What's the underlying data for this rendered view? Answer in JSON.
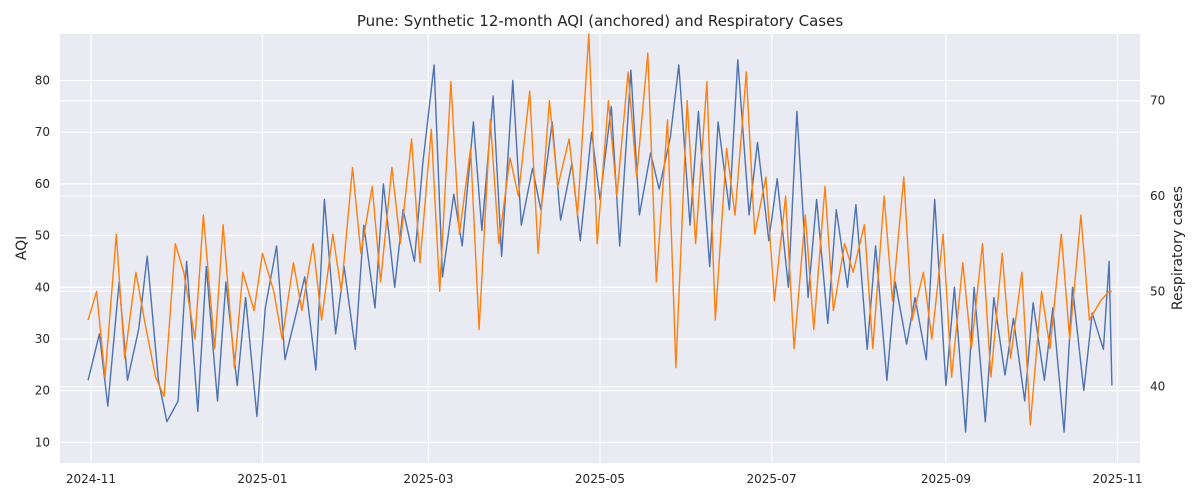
{
  "chart_data": {
    "type": "line",
    "title": "Pune: Synthetic 12-month AQI (anchored) and Respiratory Cases",
    "xlabel": "",
    "ylabel": "AQI",
    "y2label": "Respiratory cases",
    "xlim": [
      "2024-10-21",
      "2025-11-09"
    ],
    "ylim": [
      6,
      89
    ],
    "y2lim": [
      32,
      77
    ],
    "x_ticks": [
      "2024-11",
      "2025-01",
      "2025-03",
      "2025-05",
      "2025-07",
      "2025-09",
      "2025-11"
    ],
    "y_ticks": [
      10,
      20,
      30,
      40,
      50,
      60,
      70,
      80
    ],
    "y2_ticks": [
      40,
      50,
      60,
      70
    ],
    "grid": true,
    "colors": {
      "aqi": "#4c72b0",
      "cases": "#ff7f0e",
      "background": "#eaeaf2",
      "grid": "#ffffff"
    },
    "series": [
      {
        "axis": "left",
        "color": "#4c72b0",
        "values": [
          [
            "2024-10-31",
            22
          ],
          [
            "2024-11-04",
            31
          ],
          [
            "2024-11-07",
            17
          ],
          [
            "2024-11-11",
            41
          ],
          [
            "2024-11-14",
            22
          ],
          [
            "2024-11-18",
            32
          ],
          [
            "2024-11-21",
            46
          ],
          [
            "2024-11-25",
            22
          ],
          [
            "2024-11-28",
            14
          ],
          [
            "2024-12-02",
            18
          ],
          [
            "2024-12-05",
            45
          ],
          [
            "2024-12-09",
            16
          ],
          [
            "2024-12-12",
            44
          ],
          [
            "2024-12-16",
            18
          ],
          [
            "2024-12-19",
            41
          ],
          [
            "2024-12-23",
            21
          ],
          [
            "2024-12-26",
            38
          ],
          [
            "2024-12-30",
            15
          ],
          [
            "2025-01-02",
            36
          ],
          [
            "2025-01-06",
            48
          ],
          [
            "2025-01-09",
            26
          ],
          [
            "2025-01-13",
            35
          ],
          [
            "2025-01-16",
            42
          ],
          [
            "2025-01-20",
            24
          ],
          [
            "2025-01-23",
            57
          ],
          [
            "2025-01-27",
            31
          ],
          [
            "2025-01-30",
            44
          ],
          [
            "2025-02-03",
            28
          ],
          [
            "2025-02-06",
            52
          ],
          [
            "2025-02-10",
            36
          ],
          [
            "2025-02-13",
            60
          ],
          [
            "2025-02-17",
            40
          ],
          [
            "2025-02-20",
            55
          ],
          [
            "2025-02-24",
            45
          ],
          [
            "2025-02-27",
            64
          ],
          [
            "2025-03-03",
            83
          ],
          [
            "2025-03-06",
            42
          ],
          [
            "2025-03-10",
            58
          ],
          [
            "2025-03-13",
            48
          ],
          [
            "2025-03-17",
            72
          ],
          [
            "2025-03-20",
            51
          ],
          [
            "2025-03-24",
            77
          ],
          [
            "2025-03-27",
            46
          ],
          [
            "2025-03-31",
            80
          ],
          [
            "2025-04-03",
            52
          ],
          [
            "2025-04-07",
            63
          ],
          [
            "2025-04-10",
            55
          ],
          [
            "2025-04-14",
            72
          ],
          [
            "2025-04-17",
            53
          ],
          [
            "2025-04-21",
            64
          ],
          [
            "2025-04-24",
            49
          ],
          [
            "2025-04-28",
            70
          ],
          [
            "2025-05-01",
            57
          ],
          [
            "2025-05-05",
            75
          ],
          [
            "2025-05-08",
            48
          ],
          [
            "2025-05-12",
            82
          ],
          [
            "2025-05-15",
            54
          ],
          [
            "2025-05-19",
            66
          ],
          [
            "2025-05-22",
            59
          ],
          [
            "2025-05-26",
            69
          ],
          [
            "2025-05-29",
            83
          ],
          [
            "2025-06-02",
            52
          ],
          [
            "2025-06-05",
            74
          ],
          [
            "2025-06-09",
            44
          ],
          [
            "2025-06-12",
            72
          ],
          [
            "2025-06-16",
            55
          ],
          [
            "2025-06-19",
            84
          ],
          [
            "2025-06-23",
            54
          ],
          [
            "2025-06-26",
            68
          ],
          [
            "2025-06-30",
            49
          ],
          [
            "2025-07-03",
            61
          ],
          [
            "2025-07-07",
            40
          ],
          [
            "2025-07-10",
            74
          ],
          [
            "2025-07-14",
            38
          ],
          [
            "2025-07-17",
            57
          ],
          [
            "2025-07-21",
            33
          ],
          [
            "2025-07-24",
            55
          ],
          [
            "2025-07-28",
            40
          ],
          [
            "2025-07-31",
            56
          ],
          [
            "2025-08-04",
            28
          ],
          [
            "2025-08-07",
            48
          ],
          [
            "2025-08-11",
            22
          ],
          [
            "2025-08-14",
            41
          ],
          [
            "2025-08-18",
            29
          ],
          [
            "2025-08-21",
            38
          ],
          [
            "2025-08-25",
            26
          ],
          [
            "2025-08-28",
            57
          ],
          [
            "2025-09-01",
            21
          ],
          [
            "2025-09-04",
            40
          ],
          [
            "2025-09-08",
            12
          ],
          [
            "2025-09-11",
            40
          ],
          [
            "2025-09-15",
            14
          ],
          [
            "2025-09-18",
            38
          ],
          [
            "2025-09-22",
            23
          ],
          [
            "2025-09-25",
            34
          ],
          [
            "2025-09-29",
            18
          ],
          [
            "2025-10-02",
            37
          ],
          [
            "2025-10-06",
            22
          ],
          [
            "2025-10-09",
            36
          ],
          [
            "2025-10-13",
            12
          ],
          [
            "2025-10-16",
            40
          ],
          [
            "2025-10-20",
            20
          ],
          [
            "2025-10-23",
            35
          ],
          [
            "2025-10-27",
            28
          ],
          [
            "2025-10-29",
            45
          ],
          [
            "2025-10-30",
            21
          ]
        ]
      },
      {
        "axis": "right",
        "color": "#ff7f0e",
        "values": [
          [
            "2024-10-31",
            47
          ],
          [
            "2024-11-03",
            50
          ],
          [
            "2024-11-06",
            41
          ],
          [
            "2024-11-10",
            56
          ],
          [
            "2024-11-13",
            43
          ],
          [
            "2024-11-17",
            52
          ],
          [
            "2024-11-20",
            47
          ],
          [
            "2024-11-24",
            41
          ],
          [
            "2024-11-27",
            39
          ],
          [
            "2024-12-01",
            55
          ],
          [
            "2024-12-04",
            52
          ],
          [
            "2024-12-08",
            45
          ],
          [
            "2024-12-11",
            58
          ],
          [
            "2024-12-15",
            44
          ],
          [
            "2024-12-18",
            57
          ],
          [
            "2024-12-22",
            42
          ],
          [
            "2024-12-25",
            52
          ],
          [
            "2024-12-29",
            48
          ],
          [
            "2025-01-01",
            54
          ],
          [
            "2025-01-05",
            50
          ],
          [
            "2025-01-08",
            45
          ],
          [
            "2025-01-12",
            53
          ],
          [
            "2025-01-15",
            48
          ],
          [
            "2025-01-19",
            55
          ],
          [
            "2025-01-22",
            47
          ],
          [
            "2025-01-26",
            56
          ],
          [
            "2025-01-29",
            50
          ],
          [
            "2025-02-02",
            63
          ],
          [
            "2025-02-05",
            54
          ],
          [
            "2025-02-09",
            61
          ],
          [
            "2025-02-12",
            51
          ],
          [
            "2025-02-16",
            63
          ],
          [
            "2025-02-19",
            55
          ],
          [
            "2025-02-23",
            66
          ],
          [
            "2025-02-26",
            53
          ],
          [
            "2025-03-02",
            67
          ],
          [
            "2025-03-05",
            50
          ],
          [
            "2025-03-09",
            72
          ],
          [
            "2025-03-12",
            56
          ],
          [
            "2025-03-16",
            65
          ],
          [
            "2025-03-19",
            46
          ],
          [
            "2025-03-23",
            68
          ],
          [
            "2025-03-26",
            55
          ],
          [
            "2025-03-30",
            64
          ],
          [
            "2025-04-02",
            60
          ],
          [
            "2025-04-06",
            71
          ],
          [
            "2025-04-09",
            54
          ],
          [
            "2025-04-13",
            70
          ],
          [
            "2025-04-16",
            61
          ],
          [
            "2025-04-20",
            66
          ],
          [
            "2025-04-23",
            58
          ],
          [
            "2025-04-27",
            77
          ],
          [
            "2025-04-30",
            55
          ],
          [
            "2025-05-04",
            70
          ],
          [
            "2025-05-07",
            60
          ],
          [
            "2025-05-11",
            73
          ],
          [
            "2025-05-14",
            62
          ],
          [
            "2025-05-18",
            75
          ],
          [
            "2025-05-21",
            51
          ],
          [
            "2025-05-25",
            68
          ],
          [
            "2025-05-28",
            42
          ],
          [
            "2025-06-01",
            70
          ],
          [
            "2025-06-04",
            55
          ],
          [
            "2025-06-08",
            72
          ],
          [
            "2025-06-11",
            47
          ],
          [
            "2025-06-15",
            65
          ],
          [
            "2025-06-18",
            58
          ],
          [
            "2025-06-22",
            73
          ],
          [
            "2025-06-25",
            56
          ],
          [
            "2025-06-29",
            62
          ],
          [
            "2025-07-02",
            49
          ],
          [
            "2025-07-06",
            60
          ],
          [
            "2025-07-09",
            44
          ],
          [
            "2025-07-13",
            58
          ],
          [
            "2025-07-16",
            46
          ],
          [
            "2025-07-20",
            61
          ],
          [
            "2025-07-23",
            48
          ],
          [
            "2025-07-27",
            55
          ],
          [
            "2025-07-30",
            52
          ],
          [
            "2025-08-03",
            57
          ],
          [
            "2025-08-06",
            44
          ],
          [
            "2025-08-10",
            60
          ],
          [
            "2025-08-13",
            49
          ],
          [
            "2025-08-17",
            62
          ],
          [
            "2025-08-20",
            47
          ],
          [
            "2025-08-24",
            52
          ],
          [
            "2025-08-27",
            45
          ],
          [
            "2025-08-31",
            56
          ],
          [
            "2025-09-03",
            41
          ],
          [
            "2025-09-07",
            53
          ],
          [
            "2025-09-10",
            44
          ],
          [
            "2025-09-14",
            55
          ],
          [
            "2025-09-17",
            41
          ],
          [
            "2025-09-21",
            54
          ],
          [
            "2025-09-24",
            43
          ],
          [
            "2025-09-28",
            52
          ],
          [
            "2025-10-01",
            36
          ],
          [
            "2025-10-05",
            50
          ],
          [
            "2025-10-08",
            44
          ],
          [
            "2025-10-12",
            56
          ],
          [
            "2025-10-15",
            45
          ],
          [
            "2025-10-19",
            58
          ],
          [
            "2025-10-22",
            47
          ],
          [
            "2025-10-26",
            49
          ],
          [
            "2025-10-29",
            50
          ],
          [
            "2025-10-30",
            50
          ]
        ]
      }
    ]
  }
}
